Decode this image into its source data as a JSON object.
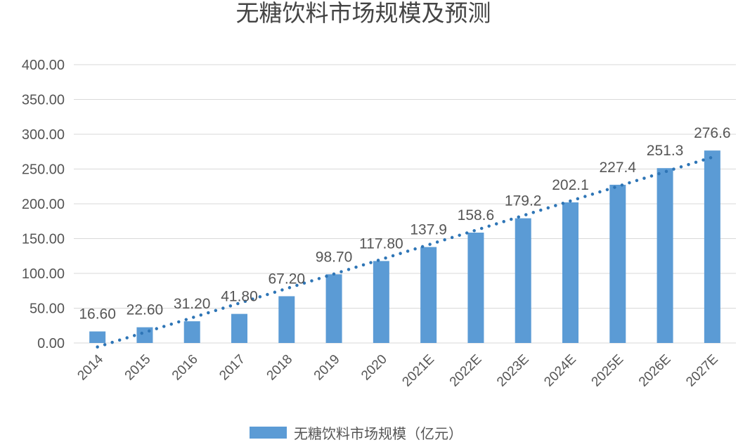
{
  "chart_data": {
    "type": "bar",
    "title": "无糖饮料市场规模及预测",
    "xlabel": "",
    "ylabel": "",
    "categories": [
      "2014",
      "2015",
      "2016",
      "2017",
      "2018",
      "2019",
      "2020",
      "2021E",
      "2022E",
      "2023E",
      "2024E",
      "2025E",
      "2026E",
      "2027E"
    ],
    "series": [
      {
        "name": "无糖饮料市场规模（亿元）",
        "values": [
          16.6,
          22.6,
          31.2,
          41.8,
          67.2,
          98.7,
          117.8,
          137.9,
          158.6,
          179.2,
          202.1,
          227.4,
          251.3,
          276.6
        ],
        "color": "#5b9bd5"
      }
    ],
    "data_labels": [
      "16.60",
      "22.60",
      "31.20",
      "41.80",
      "67.20",
      "98.70",
      "117.80",
      "137.9",
      "158.6",
      "179.2",
      "202.1",
      "227.4",
      "251.3",
      "276.6"
    ],
    "yticks": [
      "0.00",
      "50.00",
      "100.00",
      "150.00",
      "200.00",
      "250.00",
      "300.00",
      "350.00",
      "400.00"
    ],
    "ylim": [
      0,
      400
    ],
    "grid": true,
    "trendline": {
      "style": "dotted",
      "type": "linear",
      "color": "#2e75b6"
    },
    "legend": {
      "position": "bottom",
      "label": "无糖饮料市场规模（亿元）"
    }
  }
}
